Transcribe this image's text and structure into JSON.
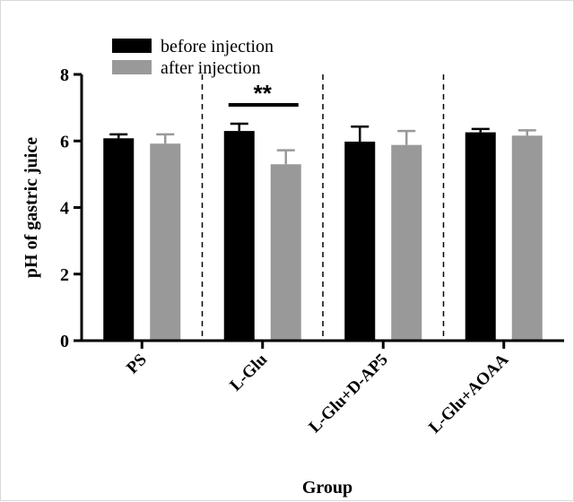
{
  "chart_data": {
    "type": "bar",
    "categories": [
      "PS",
      "L-Glu",
      "L-Glu+D-AP5",
      "L-Glu+AOAA"
    ],
    "series": [
      {
        "name": "before injection",
        "color": "#000000",
        "values": [
          6.08,
          6.3,
          5.98,
          6.26
        ],
        "errors": [
          0.12,
          0.22,
          0.45,
          0.1
        ]
      },
      {
        "name": "after injection",
        "color": "#999999",
        "values": [
          5.92,
          5.3,
          5.88,
          6.16
        ],
        "errors": [
          0.28,
          0.42,
          0.42,
          0.16
        ]
      }
    ],
    "xlabel": "Group",
    "ylabel": "pH of gastric juice",
    "ylim": [
      0,
      8
    ],
    "yticks": [
      0,
      2,
      4,
      6,
      8
    ],
    "legend_position": "top-left",
    "dividers": "dashed",
    "annotations": [
      {
        "text": "**",
        "category": "L-Glu"
      }
    ]
  }
}
